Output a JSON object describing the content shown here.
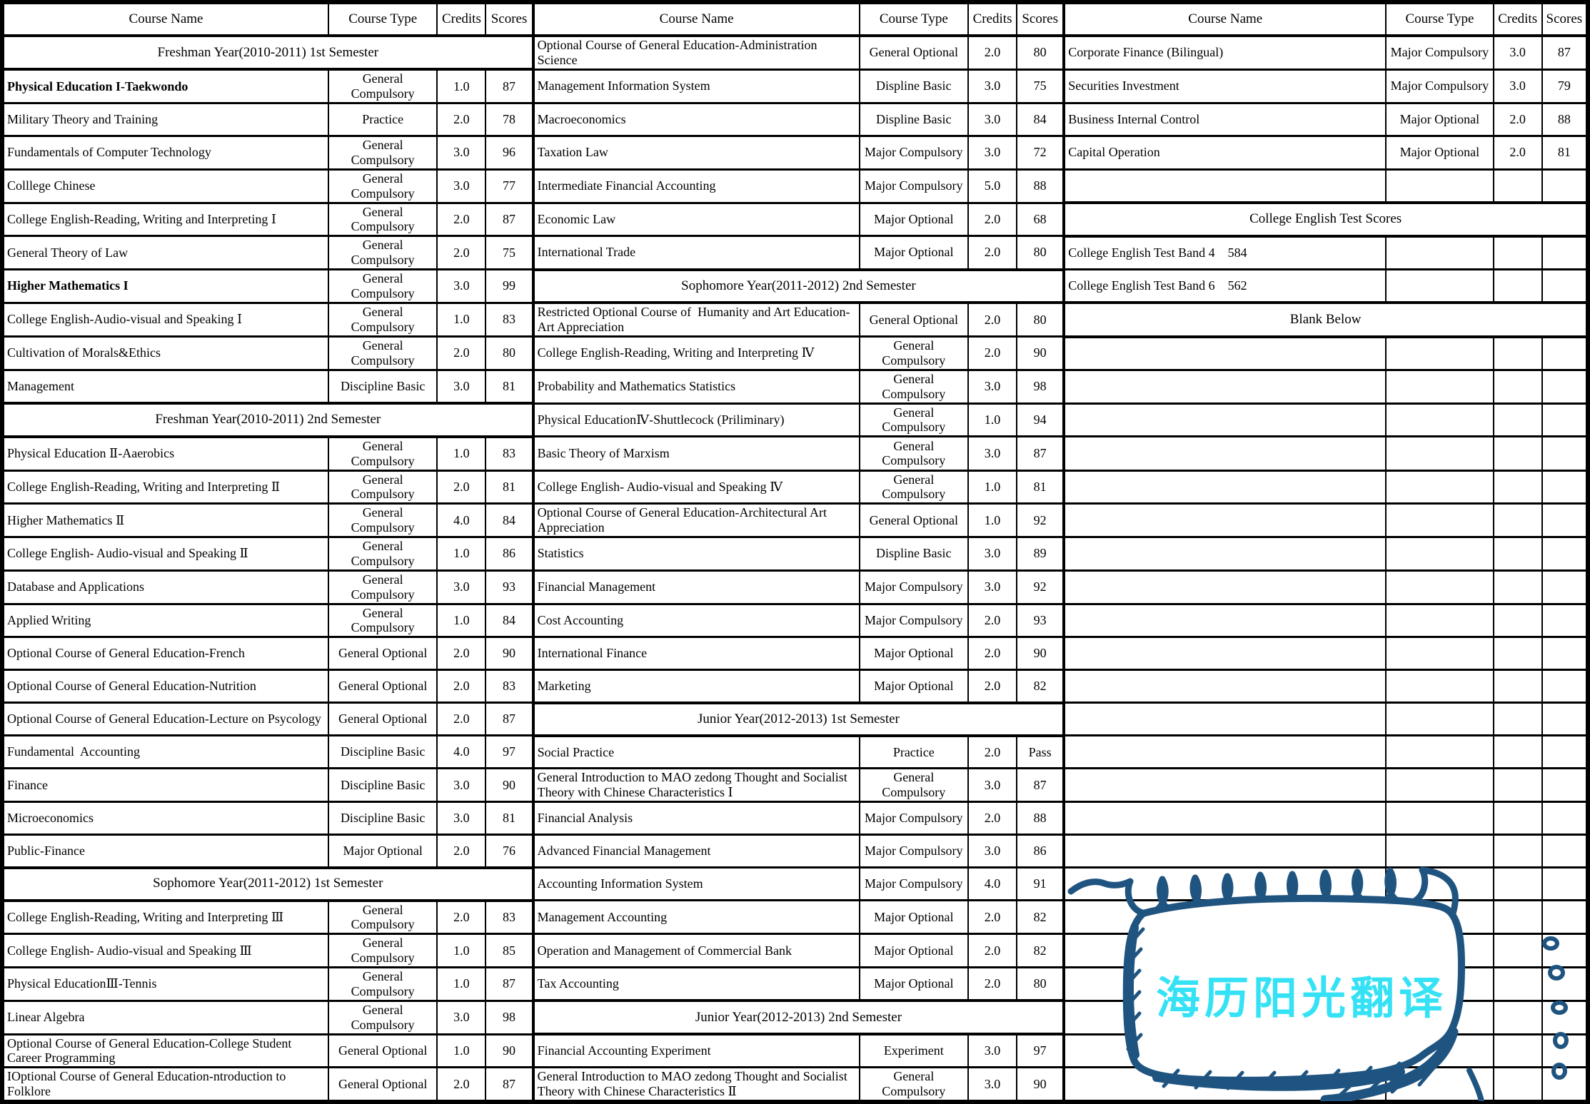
{
  "table": {
    "header": {
      "course_name": "Course Name",
      "course_type": "Course Type",
      "credits": "Credits",
      "scores": "Scores"
    },
    "groups": [
      {
        "rows": [
          {
            "kind": "header"
          },
          {
            "kind": "section",
            "label": "Freshman Year(2010-2011) 1st Semester"
          },
          {
            "kind": "course",
            "name": "Physical Education I-Taekwondo",
            "type": "General Compulsory",
            "credits": "1.0",
            "score": "87",
            "bold": true
          },
          {
            "kind": "course",
            "name": "Military Theory and Training",
            "type": "Practice",
            "credits": "2.0",
            "score": "78"
          },
          {
            "kind": "course",
            "name": "Fundamentals of Computer Technology",
            "type": "General Compulsory",
            "credits": "3.0",
            "score": "96"
          },
          {
            "kind": "course",
            "name": "Colllege Chinese",
            "type": "General Compulsory",
            "credits": "3.0",
            "score": "77"
          },
          {
            "kind": "course",
            "name": "College English-Reading, Writing and Interpreting Ⅰ",
            "type": "General Compulsory",
            "credits": "2.0",
            "score": "87"
          },
          {
            "kind": "course",
            "name": "General Theory of Law",
            "type": "General Compulsory",
            "credits": "2.0",
            "score": "75"
          },
          {
            "kind": "course",
            "name": "Higher Mathematics I",
            "type": "General Compulsory",
            "credits": "3.0",
            "score": "99",
            "bold": true
          },
          {
            "kind": "course",
            "name": "College English-Audio-visual and Speaking Ⅰ",
            "type": "General Compulsory",
            "credits": "1.0",
            "score": "83"
          },
          {
            "kind": "course",
            "name": "Cultivation of Morals&Ethics",
            "type": "General Compulsory",
            "credits": "2.0",
            "score": "80"
          },
          {
            "kind": "course",
            "name": "Management",
            "type": "Discipline Basic",
            "credits": "3.0",
            "score": "81"
          },
          {
            "kind": "section",
            "label": "Freshman Year(2010-2011) 2nd Semester"
          },
          {
            "kind": "course",
            "name": "Physical Education Ⅱ-Aaerobics",
            "type": "General Compulsory",
            "credits": "1.0",
            "score": "83"
          },
          {
            "kind": "course",
            "name": "College English-Reading, Writing and Interpreting Ⅱ",
            "type": "General Compulsory",
            "credits": "2.0",
            "score": "81"
          },
          {
            "kind": "course",
            "name": "Higher Mathematics Ⅱ",
            "type": "General Compulsory",
            "credits": "4.0",
            "score": "84"
          },
          {
            "kind": "course",
            "name": "College English- Audio-visual and Speaking Ⅱ",
            "type": "General Compulsory",
            "credits": "1.0",
            "score": "86"
          },
          {
            "kind": "course",
            "name": "Database and Applications",
            "type": "General Compulsory",
            "credits": "3.0",
            "score": "93"
          },
          {
            "kind": "course",
            "name": "Applied Writing",
            "type": "General Compulsory",
            "credits": "1.0",
            "score": "84"
          },
          {
            "kind": "course",
            "name": "Optional Course of General Education-French",
            "type": "General Optional",
            "credits": "2.0",
            "score": "90"
          },
          {
            "kind": "course",
            "name": "Optional Course of General Education-Nutrition",
            "type": "General Optional",
            "credits": "2.0",
            "score": "83"
          },
          {
            "kind": "course",
            "name": "Optional Course of General Education-Lecture on Psycology",
            "type": "General Optional",
            "credits": "2.0",
            "score": "87"
          },
          {
            "kind": "course",
            "name": "Fundamental  Accounting",
            "type": "Discipline Basic",
            "credits": "4.0",
            "score": "97"
          },
          {
            "kind": "course",
            "name": "Finance",
            "type": "Discipline Basic",
            "credits": "3.0",
            "score": "90"
          },
          {
            "kind": "course",
            "name": "Microeconomics",
            "type": "Discipline Basic",
            "credits": "3.0",
            "score": "81"
          },
          {
            "kind": "course",
            "name": "Public-Finance",
            "type": "Major Optional",
            "credits": "2.0",
            "score": "76"
          },
          {
            "kind": "section",
            "label": "Sophomore Year(2011-2012) 1st Semester"
          },
          {
            "kind": "course",
            "name": "College English-Reading, Writing and Interpreting Ⅲ",
            "type": "General Compulsory",
            "credits": "2.0",
            "score": "83"
          },
          {
            "kind": "course",
            "name": "College English- Audio-visual and Speaking Ⅲ",
            "type": "General Compulsory",
            "credits": "1.0",
            "score": "85"
          },
          {
            "kind": "course",
            "name": "Physical EducationⅢ-Tennis",
            "type": "General Compulsory",
            "credits": "1.0",
            "score": "87"
          },
          {
            "kind": "course",
            "name": "Linear Algebra",
            "type": "General Compulsory",
            "credits": "3.0",
            "score": "98"
          },
          {
            "kind": "course",
            "name": "Optional Course of General Education-College Student Career Programming",
            "type": "General Optional",
            "credits": "1.0",
            "score": "90"
          },
          {
            "kind": "course",
            "name": "IOptional Course of General Education-ntroduction to Folklore",
            "type": "General Optional",
            "credits": "2.0",
            "score": "87"
          }
        ]
      },
      {
        "rows": [
          {
            "kind": "header"
          },
          {
            "kind": "course",
            "name": "Optional Course of General Education-Administration Science",
            "type": "General Optional",
            "credits": "2.0",
            "score": "80"
          },
          {
            "kind": "course",
            "name": "Management Information System",
            "type": "Displine Basic",
            "credits": "3.0",
            "score": "75"
          },
          {
            "kind": "course",
            "name": "Macroeconomics",
            "type": "Displine Basic",
            "credits": "3.0",
            "score": "84"
          },
          {
            "kind": "course",
            "name": "Taxation Law",
            "type": "Major Compulsory",
            "credits": "3.0",
            "score": "72"
          },
          {
            "kind": "course",
            "name": "Intermediate Financial Accounting",
            "type": "Major Compulsory",
            "credits": "5.0",
            "score": "88"
          },
          {
            "kind": "course",
            "name": "Economic Law",
            "type": "Major Optional",
            "credits": "2.0",
            "score": "68"
          },
          {
            "kind": "course",
            "name": "International Trade",
            "type": "Major Optional",
            "credits": "2.0",
            "score": "80"
          },
          {
            "kind": "section",
            "label": "Sophomore Year(2011-2012) 2nd Semester"
          },
          {
            "kind": "course",
            "name": "Restricted Optional Course of  Humanity and Art Education-Art Appreciation",
            "type": "General Optional",
            "credits": "2.0",
            "score": "80"
          },
          {
            "kind": "course",
            "name": "College English-Reading, Writing and Interpreting Ⅳ",
            "type": "General Compulsory",
            "credits": "2.0",
            "score": "90"
          },
          {
            "kind": "course",
            "name": "Probability and Mathematics Statistics",
            "type": "General Compulsory",
            "credits": "3.0",
            "score": "98"
          },
          {
            "kind": "course",
            "name": "Physical EducationⅣ-Shuttlecock (Priliminary)",
            "type": "General Compulsory",
            "credits": "1.0",
            "score": "94"
          },
          {
            "kind": "course",
            "name": "Basic Theory of Marxism",
            "type": "General Compulsory",
            "credits": "3.0",
            "score": "87"
          },
          {
            "kind": "course",
            "name": "College English- Audio-visual and Speaking Ⅳ",
            "type": "General Compulsory",
            "credits": "1.0",
            "score": "81"
          },
          {
            "kind": "course",
            "name": "Optional Course of General Education-Architectural Art Appreciation",
            "type": "General Optional",
            "credits": "1.0",
            "score": "92"
          },
          {
            "kind": "course",
            "name": "Statistics",
            "type": "Displine Basic",
            "credits": "3.0",
            "score": "89"
          },
          {
            "kind": "course",
            "name": "Financial Management",
            "type": "Major Compulsory",
            "credits": "3.0",
            "score": "92"
          },
          {
            "kind": "course",
            "name": "Cost Accounting",
            "type": "Major Compulsory",
            "credits": "2.0",
            "score": "93"
          },
          {
            "kind": "course",
            "name": "International Finance",
            "type": "Major Optional",
            "credits": "2.0",
            "score": "90"
          },
          {
            "kind": "course",
            "name": "Marketing",
            "type": "Major Optional",
            "credits": "2.0",
            "score": "82"
          },
          {
            "kind": "section",
            "label": "Junior Year(2012-2013) 1st Semester"
          },
          {
            "kind": "course",
            "name": "Social Practice",
            "type": "Practice",
            "credits": "2.0",
            "score": "Pass"
          },
          {
            "kind": "course",
            "name": "General Introduction to MAO zedong Thought and Socialist Theory with Chinese Characteristics Ⅰ",
            "type": "General Compulsory",
            "credits": "3.0",
            "score": "87"
          },
          {
            "kind": "course",
            "name": "Financial Analysis",
            "type": "Major Compulsory",
            "credits": "2.0",
            "score": "88"
          },
          {
            "kind": "course",
            "name": "Advanced Financial Management",
            "type": "Major Compulsory",
            "credits": "3.0",
            "score": "86"
          },
          {
            "kind": "course",
            "name": "Accounting Information System",
            "type": "Major Compulsory",
            "credits": "4.0",
            "score": "91"
          },
          {
            "kind": "course",
            "name": "Management Accounting",
            "type": "Major Optional",
            "credits": "2.0",
            "score": "82"
          },
          {
            "kind": "course",
            "name": "Operation and Management of Commercial Bank",
            "type": "Major Optional",
            "credits": "2.0",
            "score": "82"
          },
          {
            "kind": "course",
            "name": "Tax Accounting",
            "type": "Major Optional",
            "credits": "2.0",
            "score": "80"
          },
          {
            "kind": "section",
            "label": "Junior Year(2012-2013) 2nd Semester"
          },
          {
            "kind": "course",
            "name": "Financial Accounting Experiment",
            "type": "Experiment",
            "credits": "3.0",
            "score": "97"
          },
          {
            "kind": "course",
            "name": "General Introduction to MAO zedong Thought and Socialist Theory with Chinese Characteristics Ⅱ",
            "type": "General Compulsory",
            "credits": "3.0",
            "score": "90"
          }
        ]
      },
      {
        "rows": [
          {
            "kind": "header"
          },
          {
            "kind": "course",
            "name": "Corporate Finance (Bilingual)",
            "type": "Major Compulsory",
            "credits": "3.0",
            "score": "87"
          },
          {
            "kind": "course",
            "name": "Securities Investment",
            "type": "Major Compulsory",
            "credits": "3.0",
            "score": "79"
          },
          {
            "kind": "course",
            "name": "Business Internal Control",
            "type": "Major Optional",
            "credits": "2.0",
            "score": "88"
          },
          {
            "kind": "course",
            "name": "Capital Operation",
            "type": "Major Optional",
            "credits": "2.0",
            "score": "81"
          },
          {
            "kind": "empty"
          },
          {
            "kind": "section",
            "label": "College English Test Scores"
          },
          {
            "kind": "course",
            "name": "College English Test Band 4    584",
            "type": "",
            "credits": "",
            "score": ""
          },
          {
            "kind": "course",
            "name": "College English Test Band 6    562",
            "type": "",
            "credits": "",
            "score": ""
          },
          {
            "kind": "section",
            "label": "Blank Below"
          },
          {
            "kind": "empty"
          },
          {
            "kind": "empty"
          },
          {
            "kind": "empty"
          },
          {
            "kind": "empty"
          },
          {
            "kind": "empty"
          },
          {
            "kind": "empty"
          },
          {
            "kind": "empty"
          },
          {
            "kind": "empty"
          },
          {
            "kind": "empty"
          },
          {
            "kind": "empty"
          },
          {
            "kind": "empty"
          },
          {
            "kind": "empty"
          },
          {
            "kind": "empty"
          },
          {
            "kind": "empty"
          },
          {
            "kind": "empty"
          },
          {
            "kind": "empty"
          },
          {
            "kind": "empty"
          },
          {
            "kind": "empty"
          },
          {
            "kind": "empty"
          },
          {
            "kind": "empty"
          },
          {
            "kind": "empty"
          },
          {
            "kind": "empty"
          },
          {
            "kind": "empty"
          }
        ]
      }
    ]
  },
  "watermark": {
    "text": "海历阳光翻译",
    "ink_color": "#1f5480",
    "text_color": "#35e2f5"
  }
}
